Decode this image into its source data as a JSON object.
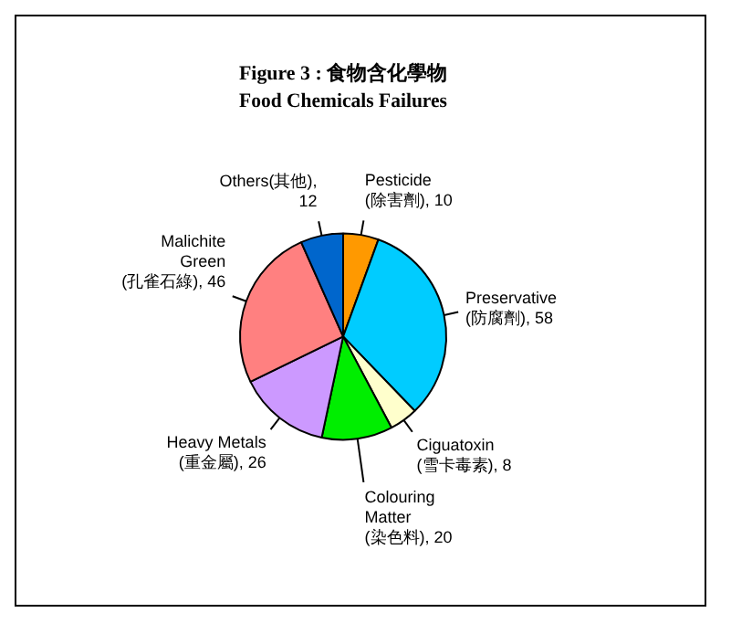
{
  "chart_data": {
    "type": "pie",
    "title": "Figure 3 : 食物含化學物",
    "subtitle": "Food Chemicals Failures",
    "categories": [
      "Pesticide(除害劑)",
      "Preservative(防腐劑)",
      "Ciguatoxin(雪卡毒素)",
      "Colouring Matter(染色料)",
      "Heavy Metals(重金屬)",
      "Malichite Green(孔雀石綠)",
      "Others(其他)"
    ],
    "values": [
      10,
      58,
      8,
      20,
      26,
      46,
      12
    ],
    "colors": [
      "#ff9900",
      "#00ccff",
      "#ffffcc",
      "#00ee00",
      "#cc99ff",
      "#ff8080",
      "#0066cc"
    ],
    "value_labels": [
      ", 10",
      ", 58",
      ", 8",
      ", 20",
      ", 26",
      ", 46",
      ", 12"
    ],
    "legend": false
  }
}
